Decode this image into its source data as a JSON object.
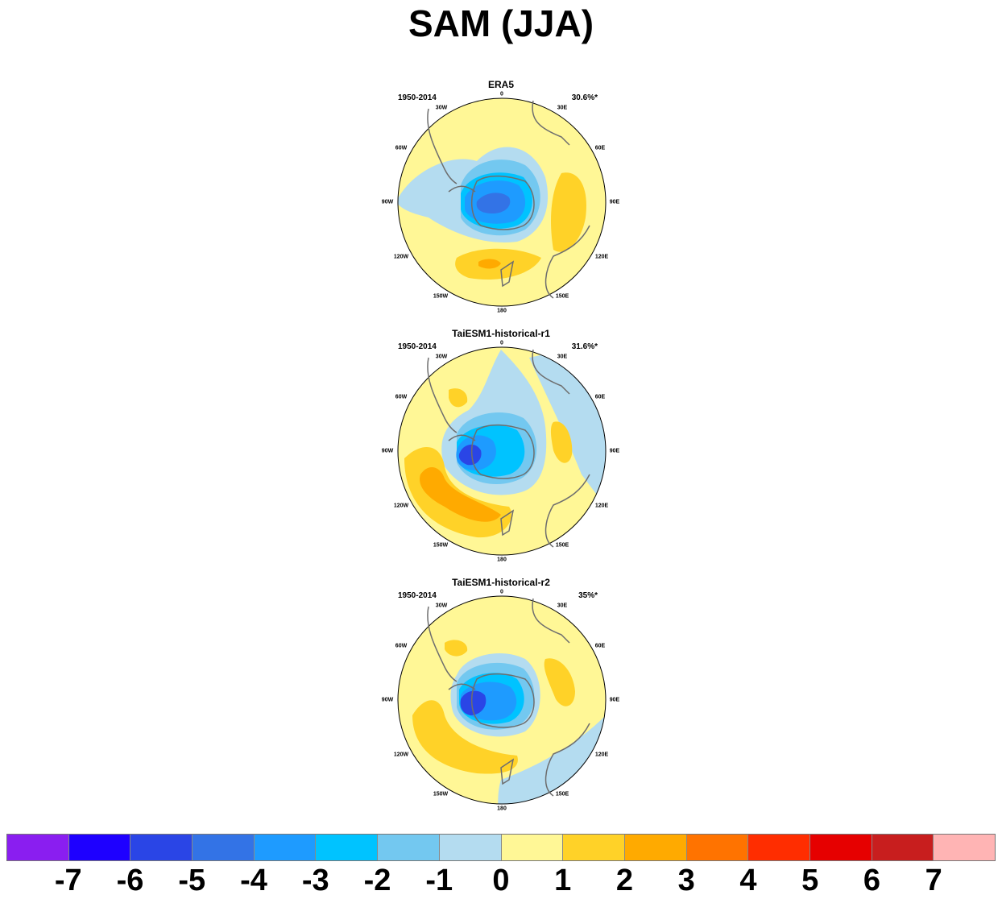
{
  "title": "SAM (JJA)",
  "panels": [
    {
      "title": "ERA5",
      "period": "1950-2014",
      "pct": "30.6%*"
    },
    {
      "title": "TaiESM1-historical-r1",
      "period": "1950-2014",
      "pct": "31.6%*"
    },
    {
      "title": "TaiESM1-historical-r2",
      "period": "1950-2014",
      "pct": "35%*"
    }
  ],
  "lon_labels": [
    "0",
    "30E",
    "60E",
    "90E",
    "120E",
    "150E",
    "180",
    "150W",
    "120W",
    "90W",
    "60W",
    "30W"
  ],
  "colorbar": {
    "labels": [
      "-7",
      "-6",
      "-5",
      "-4",
      "-3",
      "-2",
      "-1",
      "0",
      "1",
      "2",
      "3",
      "4",
      "5",
      "6",
      "7"
    ],
    "colors": [
      "#8a1ef0",
      "#1e00ff",
      "#2a45e6",
      "#3373e6",
      "#1e9bff",
      "#00c3ff",
      "#73c8f0",
      "#b4dcf0",
      "#fff796",
      "#ffd228",
      "#ffaa00",
      "#ff7300",
      "#ff2d00",
      "#e60000",
      "#c81e1e",
      "#ffb4b4"
    ]
  },
  "colors": {
    "yellow": "#fff796",
    "gold": "#ffd228",
    "orange": "#ffaa00",
    "lightblue": "#b4dcf0",
    "sky": "#73c8f0",
    "cyan": "#00c3ff",
    "blue": "#1e9bff",
    "midblue": "#3373e6",
    "darkblue": "#2a45e6",
    "coast": "#6e6e6e"
  }
}
